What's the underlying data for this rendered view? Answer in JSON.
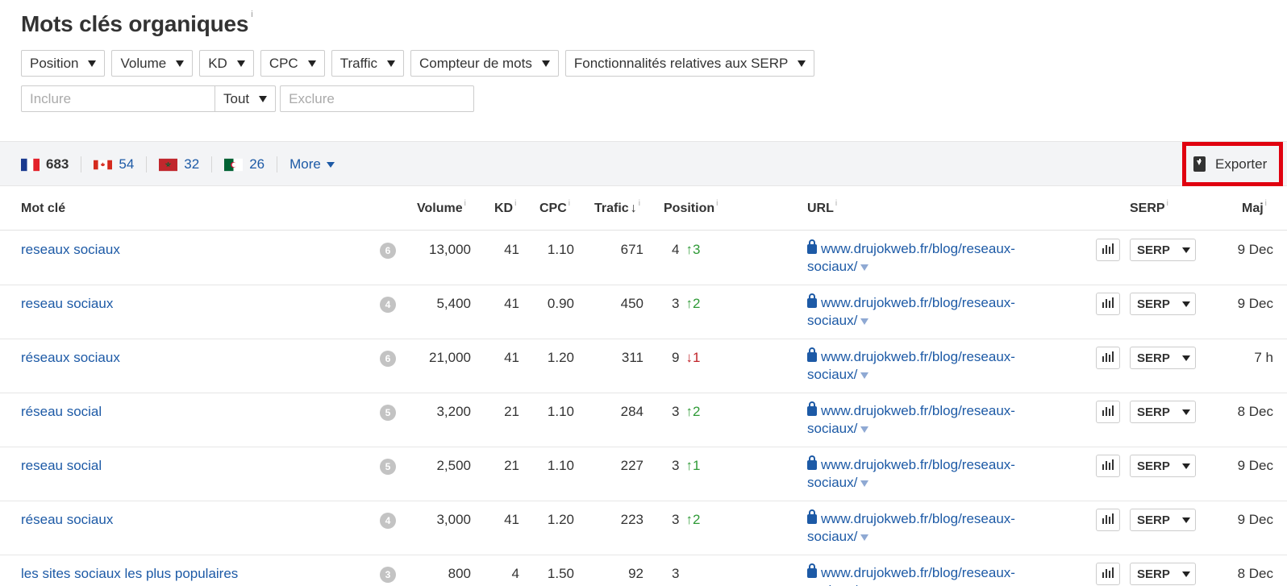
{
  "header": {
    "title": "Mots clés organiques",
    "info": "i"
  },
  "filters": [
    "Position",
    "Volume",
    "KD",
    "CPC",
    "Traffic",
    "Compteur de mots",
    "Fonctionnalités relatives aux SERP"
  ],
  "search": {
    "include_placeholder": "Inclure",
    "mode": "Tout",
    "exclude_placeholder": "Exclure"
  },
  "countries": [
    {
      "flag": "france-flag",
      "count": "683",
      "active": true
    },
    {
      "flag": "canada-flag",
      "count": "54"
    },
    {
      "flag": "morocco-flag",
      "count": "32"
    },
    {
      "flag": "algeria-flag",
      "count": "26"
    }
  ],
  "more_label": "More",
  "export_label": "Exporter",
  "columns": {
    "keyword": "Mot clé",
    "volume": "Volume",
    "kd": "KD",
    "cpc": "CPC",
    "traffic": "Trafic",
    "position": "Position",
    "url": "URL",
    "serp": "SERP",
    "updated": "Maj"
  },
  "serp_btn_label": "SERP",
  "rows": [
    {
      "keyword": "reseaux sociaux",
      "serp_count": "6",
      "volume": "13,000",
      "kd": "41",
      "cpc": "1.10",
      "traffic": "671",
      "position": "4",
      "delta": "3",
      "delta_dir": "up",
      "url_line1": "www.drujokweb.fr/blog/reseaux-",
      "url_line2": "sociaux/",
      "updated": "9 Dec"
    },
    {
      "keyword": "reseau sociaux",
      "serp_count": "4",
      "volume": "5,400",
      "kd": "41",
      "cpc": "0.90",
      "traffic": "450",
      "position": "3",
      "delta": "2",
      "delta_dir": "up",
      "url_line1": "www.drujokweb.fr/blog/reseaux-",
      "url_line2": "sociaux/",
      "updated": "9 Dec"
    },
    {
      "keyword": "réseaux sociaux",
      "serp_count": "6",
      "volume": "21,000",
      "kd": "41",
      "cpc": "1.20",
      "traffic": "311",
      "position": "9",
      "delta": "1",
      "delta_dir": "down",
      "url_line1": "www.drujokweb.fr/blog/reseaux-",
      "url_line2": "sociaux/",
      "updated": "7 h"
    },
    {
      "keyword": "réseau social",
      "serp_count": "5",
      "volume": "3,200",
      "kd": "21",
      "cpc": "1.10",
      "traffic": "284",
      "position": "3",
      "delta": "2",
      "delta_dir": "up",
      "url_line1": "www.drujokweb.fr/blog/reseaux-",
      "url_line2": "sociaux/",
      "updated": "8 Dec"
    },
    {
      "keyword": "reseau social",
      "serp_count": "5",
      "volume": "2,500",
      "kd": "21",
      "cpc": "1.10",
      "traffic": "227",
      "position": "3",
      "delta": "1",
      "delta_dir": "up",
      "url_line1": "www.drujokweb.fr/blog/reseaux-",
      "url_line2": "sociaux/",
      "updated": "9 Dec"
    },
    {
      "keyword": "réseau sociaux",
      "serp_count": "4",
      "volume": "3,000",
      "kd": "41",
      "cpc": "1.20",
      "traffic": "223",
      "position": "3",
      "delta": "2",
      "delta_dir": "up",
      "url_line1": "www.drujokweb.fr/blog/reseaux-",
      "url_line2": "sociaux/",
      "updated": "9 Dec"
    },
    {
      "keyword": "les sites sociaux les plus populaires",
      "serp_count": "3",
      "volume": "800",
      "kd": "4",
      "cpc": "1.50",
      "traffic": "92",
      "position": "3",
      "delta": "",
      "delta_dir": "",
      "url_line1": "www.drujokweb.fr/blog/reseaux-",
      "url_line2": "sociaux/",
      "updated": "8 Dec"
    }
  ],
  "colors": {
    "link": "#1d5aa6",
    "up": "#2f9a37",
    "down": "#c0242a",
    "highlight": "#e0000f"
  }
}
